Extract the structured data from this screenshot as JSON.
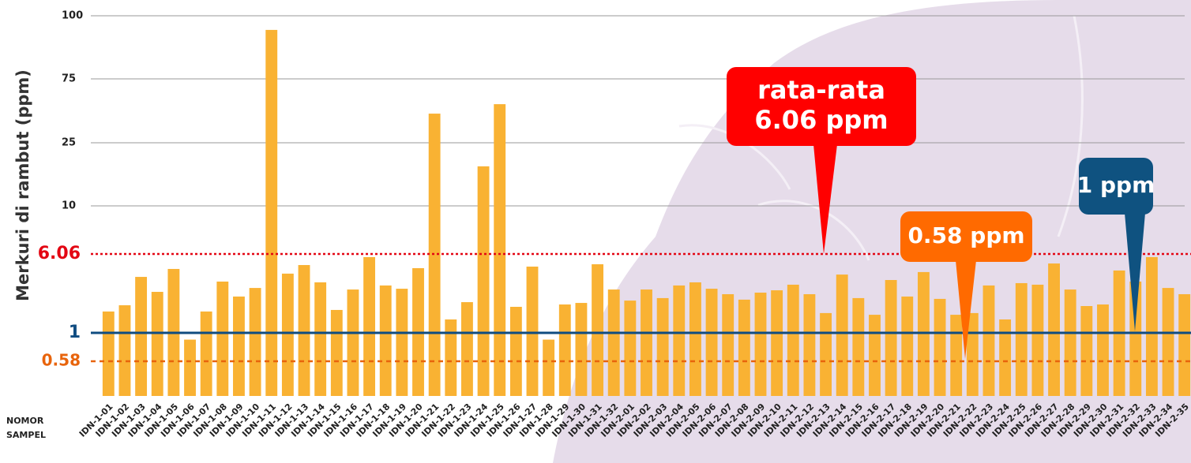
{
  "chart_data": {
    "type": "bar",
    "y_label": "Merkuri di rambut (ppm)",
    "x_label": [
      "NOMOR",
      "SAMPEL"
    ],
    "categories": [
      "IDN-1-01",
      "IDN-1-02",
      "IDN-1-03",
      "IDN-1-04",
      "IDN-1-05",
      "IDN-1-06",
      "IDN-1-07",
      "IDN-1-08",
      "IDN-1-09",
      "IDN-1-10",
      "IDN-1-11",
      "IDN-1-12",
      "IDN-1-13",
      "IDN-1-14",
      "IDN-1-15",
      "IDN-1-16",
      "IDN-1-17",
      "IDN-1-18",
      "IDN-1-19",
      "IDN-1-20",
      "IDN-1-21",
      "IDN-1-22",
      "IDN-1-23",
      "IDN-1-24",
      "IDN-1-25",
      "IDN-1-26",
      "IDN-1-27",
      "IDN-1-28",
      "IDN-1-29",
      "IDN-1-30",
      "IDN-1-31",
      "IDN-1-32",
      "IDN-2-01",
      "IDN-2-02",
      "IDN-2-03",
      "IDN-2-04",
      "IDN-2-05",
      "IDN-2-06",
      "IDN-2-07",
      "IDN-2-08",
      "IDN-2-09",
      "IDN-2-10",
      "IDN-2-11",
      "IDN-2-12",
      "IDN-2-13",
      "IDN-2-14",
      "IDN-2-15",
      "IDN-2-16",
      "IDN-2-17",
      "IDN-2-18",
      "IDN-2-19",
      "IDN-2-20",
      "IDN-2-21",
      "IDN-2-22",
      "IDN-2-23",
      "IDN-2-24",
      "IDN-2-25",
      "IDN-2-26",
      "IDN-2-27",
      "IDN-2-28",
      "IDN-2-29",
      "IDN-2-30",
      "IDN-2-31",
      "IDN-2-32",
      "IDN-2-33",
      "IDN-2-34",
      "IDN-2-35"
    ],
    "values": [
      2.37,
      2.77,
      4.59,
      3.63,
      5.1,
      0.9,
      2.37,
      4.29,
      3.33,
      3.88,
      94.4,
      4.8,
      5.35,
      4.24,
      2.47,
      3.78,
      5.86,
      4.04,
      3.83,
      5.15,
      47.8,
      1.86,
      2.97,
      19.4,
      55.2,
      2.67,
      5.25,
      0.9,
      2.82,
      2.92,
      5.4,
      3.78,
      3.07,
      3.78,
      3.23,
      4.04,
      4.24,
      3.83,
      3.48,
      3.13,
      3.58,
      3.73,
      4.09,
      3.48,
      2.27,
      4.74,
      3.23,
      2.16,
      4.39,
      3.33,
      4.9,
      3.18,
      2.16,
      2.27,
      4.04,
      1.86,
      4.19,
      4.09,
      5.45,
      3.78,
      2.72,
      2.82,
      5.0,
      4.29,
      5.86,
      3.88,
      3.48
    ],
    "color": "#f9b233",
    "ylim": [
      0,
      100
    ],
    "yticks": [
      10,
      25,
      75,
      100
    ],
    "grid": true,
    "reference_lines": [
      {
        "value": 6.06,
        "label": "6.06",
        "color": "#e30613",
        "style": "dotted"
      },
      {
        "value": 1,
        "label": "1",
        "color": "#0f4c81",
        "style": "solid"
      },
      {
        "value": 0.58,
        "label": "0.58",
        "color": "#e8640c",
        "style": "dashed"
      }
    ],
    "annotations": [
      {
        "text": [
          "rata-rata",
          "6.06 ppm"
        ],
        "color": "#ff0000"
      },
      {
        "text": [
          "0.58 ppm"
        ],
        "color": "#ff6a00"
      },
      {
        "text": [
          "1 ppm"
        ],
        "color": "#0f5280"
      }
    ]
  }
}
